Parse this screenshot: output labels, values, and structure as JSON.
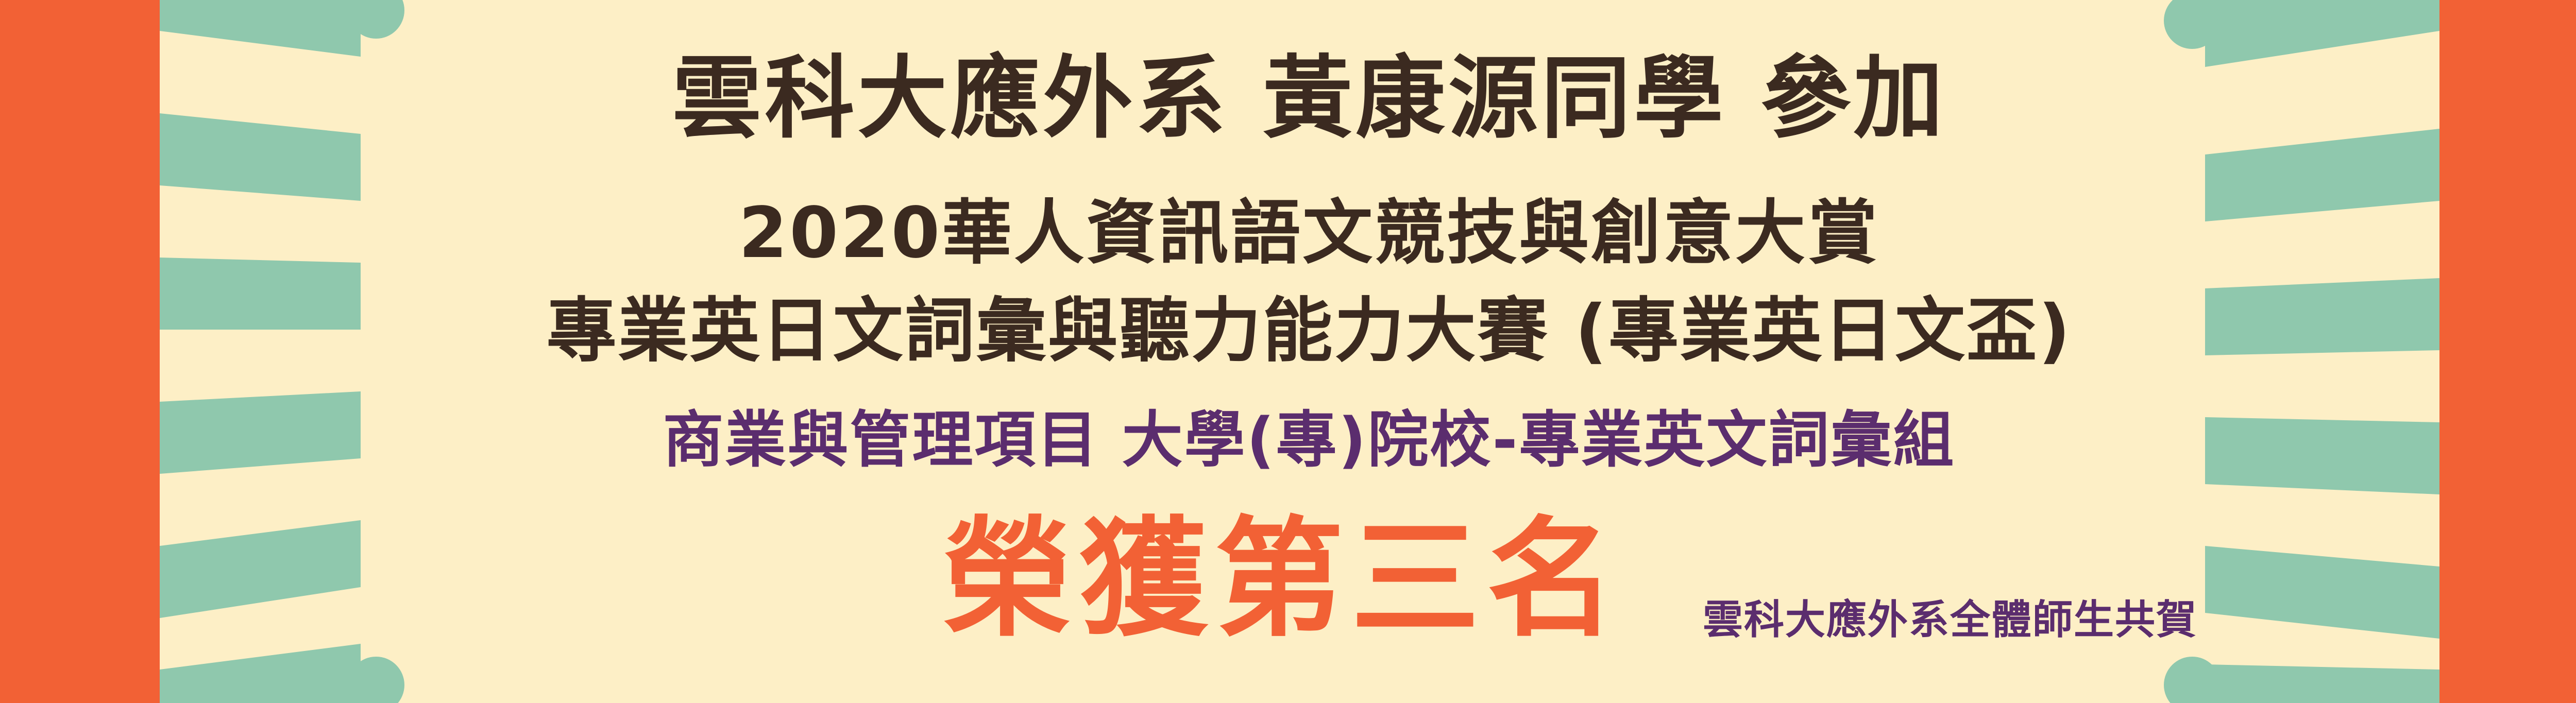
{
  "banner": {
    "headline": "雲科大應外系 黃康源同學 參加",
    "competition": "2020華人資訊語文競技與創意大賞",
    "contest": "專業英日文詞彙與聽力能力大賽 (專業英日文盃)",
    "category": "商業與管理項目 大學(專)院校-專業英文詞彙組",
    "award": "榮獲第三名",
    "congratulations": "雲科大應外系全體師生共賀"
  },
  "colors": {
    "background": "#fdefc6",
    "side_bars": "#f26135",
    "rays": "#8fc8ad",
    "dark_text": "#3b2a20",
    "purple_text": "#5b2d6e",
    "award_text": "#f26135"
  }
}
